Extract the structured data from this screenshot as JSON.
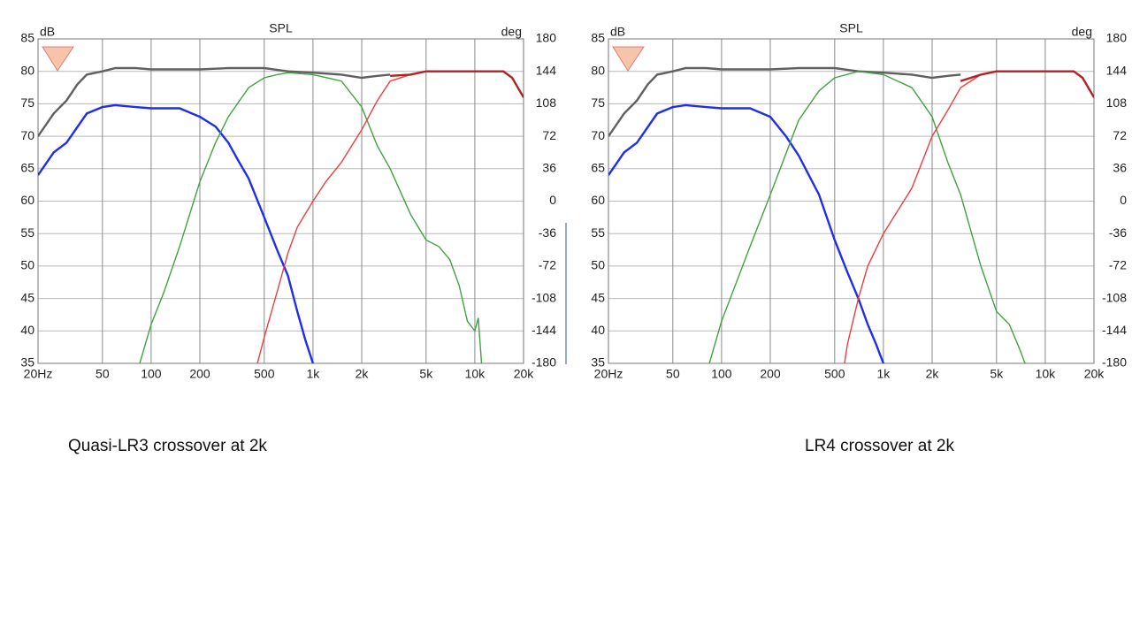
{
  "chart_data": [
    {
      "type": "line",
      "title": "SPL",
      "y_label": "dB",
      "y2_label": "deg",
      "caption": "Quasi-LR3 crossover at 2k",
      "xscale": "log",
      "xlim": [
        20,
        20000
      ],
      "xticks": [
        {
          "value": 20,
          "label": "20Hz"
        },
        50,
        100,
        200,
        500,
        {
          "value": 1000,
          "label": "1k"
        },
        {
          "value": 2000,
          "label": "2k"
        },
        {
          "value": 5000,
          "label": "5k"
        },
        {
          "value": 10000,
          "label": "10k"
        },
        {
          "value": 20000,
          "label": "20k"
        }
      ],
      "ylim": [
        35,
        85
      ],
      "yticks": [
        35,
        40,
        45,
        50,
        55,
        60,
        65,
        70,
        75,
        80,
        85
      ],
      "y2lim": [
        -180,
        180
      ],
      "y2ticks": [
        -180,
        -144,
        -108,
        -72,
        -36,
        0,
        36,
        72,
        108,
        144,
        180
      ],
      "grid": true,
      "series": [
        {
          "color": "#606060",
          "x": [
            20,
            25,
            30,
            35,
            40,
            50,
            60,
            70,
            80,
            100,
            150,
            200,
            300,
            500,
            700,
            1000,
            1500,
            2000,
            2500,
            3000
          ],
          "values": [
            70,
            73.5,
            75.5,
            78,
            79.5,
            80,
            80.5,
            80.5,
            80.5,
            80.3,
            80.3,
            80.3,
            80.5,
            80.5,
            80,
            79.8,
            79.5,
            79,
            79.3,
            79.5
          ]
        },
        {
          "color": "#1f2ee8",
          "x": [
            20,
            25,
            30,
            40,
            50,
            60,
            80,
            100,
            150,
            200,
            250,
            300,
            350,
            400,
            500,
            600,
            700,
            800,
            900,
            1000
          ],
          "values": [
            64,
            67.5,
            69,
            73.5,
            74.5,
            74.8,
            74.5,
            74.3,
            74.3,
            73,
            71.5,
            69,
            66,
            63.5,
            57.5,
            52.5,
            48.5,
            43,
            38.5,
            35
          ]
        },
        {
          "color": "#3fa33f",
          "x": [
            85,
            100,
            120,
            150,
            200,
            250,
            300,
            400,
            500,
            600,
            700,
            1000,
            1500,
            2000,
            2500,
            3000,
            4000,
            5000,
            6000,
            7000,
            8000,
            9000,
            10000,
            10500,
            11000
          ],
          "values": [
            35,
            41,
            46,
            53,
            63,
            69,
            73,
            77.5,
            79,
            79.5,
            79.8,
            79.5,
            78.5,
            74.5,
            68.5,
            65,
            58,
            54,
            53,
            51,
            47,
            41.5,
            40,
            42,
            35
          ]
        },
        {
          "color": "#f03c3c",
          "x": [
            453,
            500,
            600,
            700,
            800,
            1000,
            1200,
            1500,
            2000,
            2500,
            3000,
            4000
          ],
          "values": [
            35,
            39,
            46,
            52,
            56,
            60,
            63,
            66,
            71,
            75.5,
            78.5,
            79.5
          ]
        },
        {
          "color": "#b22222",
          "x": [
            3000,
            4000,
            5000,
            7000,
            10000,
            12000,
            15000,
            17000,
            20000
          ],
          "values": [
            79.3,
            79.5,
            80,
            80,
            80,
            80,
            80,
            79,
            76
          ]
        }
      ]
    },
    {
      "type": "line",
      "title": "SPL",
      "y_label": "dB",
      "y2_label": "deg",
      "caption": "LR4 crossover at 2k",
      "xscale": "log",
      "xlim": [
        20,
        20000
      ],
      "xticks": [
        {
          "value": 20,
          "label": "20Hz"
        },
        50,
        100,
        200,
        500,
        {
          "value": 1000,
          "label": "1k"
        },
        {
          "value": 2000,
          "label": "2k"
        },
        {
          "value": 5000,
          "label": "5k"
        },
        {
          "value": 10000,
          "label": "10k"
        },
        {
          "value": 20000,
          "label": "20k"
        }
      ],
      "ylim": [
        35,
        85
      ],
      "yticks": [
        35,
        40,
        45,
        50,
        55,
        60,
        65,
        70,
        75,
        80,
        85
      ],
      "y2lim": [
        -180,
        180
      ],
      "y2ticks": [
        -180,
        -144,
        -108,
        -72,
        -36,
        0,
        36,
        72,
        108,
        144,
        180
      ],
      "grid": true,
      "series": [
        {
          "color": "#606060",
          "x": [
            20,
            25,
            30,
            35,
            40,
            50,
            60,
            70,
            80,
            100,
            150,
            200,
            300,
            500,
            700,
            1000,
            1500,
            2000,
            2500,
            3000
          ],
          "values": [
            70,
            73.5,
            75.5,
            78,
            79.5,
            80,
            80.5,
            80.5,
            80.5,
            80.3,
            80.3,
            80.3,
            80.5,
            80.5,
            80,
            79.8,
            79.5,
            79,
            79.3,
            79.5
          ]
        },
        {
          "color": "#1f2ee8",
          "x": [
            20,
            25,
            30,
            40,
            50,
            60,
            80,
            100,
            150,
            200,
            250,
            300,
            400,
            500,
            600,
            700,
            800,
            900,
            1000
          ],
          "values": [
            64,
            67.5,
            69,
            73.5,
            74.5,
            74.8,
            74.5,
            74.3,
            74.3,
            73,
            70,
            67,
            61,
            54,
            49,
            45,
            41,
            38,
            35
          ]
        },
        {
          "color": "#3fa33f",
          "x": [
            84,
            100,
            150,
            200,
            300,
            400,
            500,
            700,
            1000,
            1500,
            2000,
            2500,
            3000,
            4000,
            5000,
            6000,
            7000,
            7500
          ],
          "values": [
            35,
            41.5,
            53,
            61,
            72.5,
            77,
            79,
            80,
            79.5,
            77.5,
            73,
            66,
            61,
            50,
            43,
            41,
            37,
            35
          ]
        },
        {
          "color": "#f03c3c",
          "x": [
            575,
            600,
            700,
            800,
            1000,
            1500,
            2000,
            2500,
            3000,
            4000
          ],
          "values": [
            35,
            38,
            45,
            50,
            55,
            62,
            70,
            74,
            77.5,
            79.5
          ]
        },
        {
          "color": "#b22222",
          "x": [
            3000,
            4000,
            5000,
            7000,
            10000,
            12000,
            15000,
            17000,
            20000
          ],
          "values": [
            78.5,
            79.5,
            80,
            80,
            80,
            80,
            80,
            79,
            76
          ]
        }
      ]
    }
  ]
}
